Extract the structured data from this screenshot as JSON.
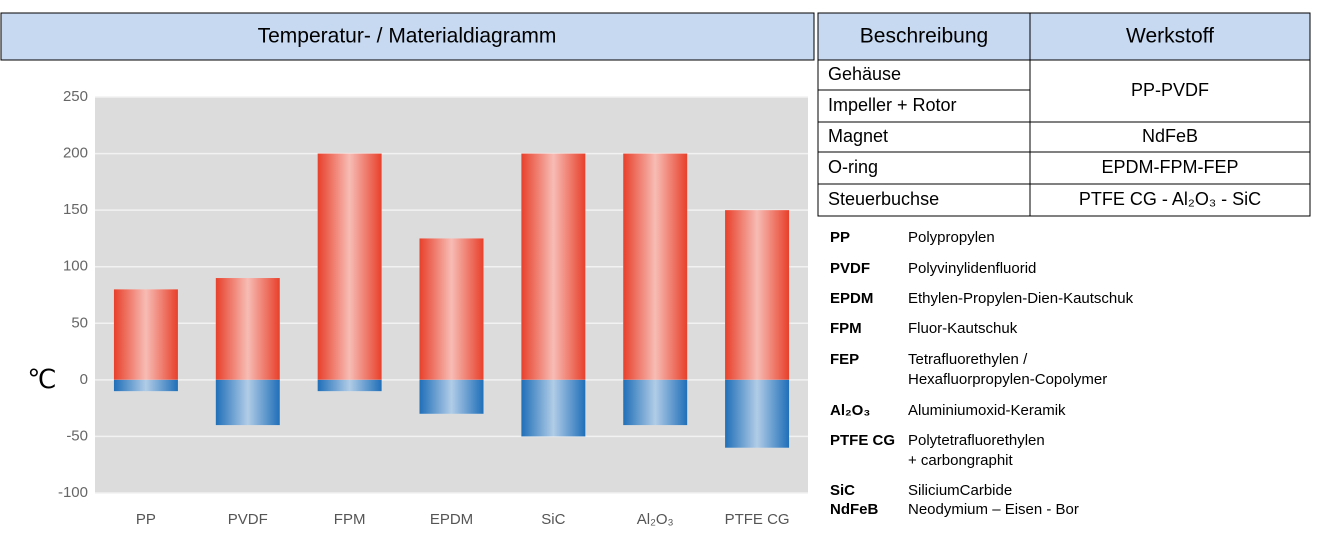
{
  "chart_data": {
    "type": "bar",
    "title": "Temperatur- / Materialdiagramm",
    "y_unit": "℃",
    "categories": [
      "PP",
      "PVDF",
      "FPM",
      "EPDM",
      "SiC",
      "Al₂O₃",
      "PTFE CG"
    ],
    "series": [
      {
        "color": "#e8402a",
        "values": [
          80,
          90,
          200,
          125,
          200,
          200,
          150
        ]
      },
      {
        "color": "#1f6fb8",
        "values": [
          -10,
          -40,
          -10,
          -30,
          -50,
          -40,
          -60
        ]
      }
    ],
    "ylim": [
      -100,
      250
    ],
    "yticks": [
      -100,
      -50,
      0,
      50,
      100,
      150,
      200,
      250
    ],
    "grid": true
  },
  "table": {
    "header": [
      "Beschreibung",
      "Werkstoff"
    ],
    "rows": [
      [
        "Gehäuse",
        "PP-PVDF"
      ],
      [
        "Impeller + Rotor"
      ],
      [
        "Magnet",
        "NdFeB"
      ],
      [
        "O-ring",
        "EPDM-FPM-FEP"
      ],
      [
        "Steuerbuchse",
        "PTFE CG - Al₂O₃ - SiC"
      ]
    ]
  },
  "abbreviations": [
    {
      "abbr": "PP",
      "lines": [
        "Polypropylen"
      ]
    },
    {
      "abbr": "PVDF",
      "lines": [
        "Polyvinylidenfluorid"
      ]
    },
    {
      "abbr": "EPDM",
      "lines": [
        "Ethylen-Propylen-Dien-Kautschuk"
      ]
    },
    {
      "abbr": "FPM",
      "lines": [
        "Fluor-Kautschuk"
      ]
    },
    {
      "abbr": "FEP",
      "lines": [
        "Tetrafluorethylen /",
        "Hexafluorpropylen-Copolymer"
      ]
    },
    {
      "abbr": "Al₂O₃",
      "lines": [
        "Aluminiumoxid-Keramik"
      ]
    },
    {
      "abbr": "PTFE CG",
      "lines": [
        "Polytetrafluorethylen",
        "+ carbongraphit"
      ]
    },
    {
      "abbr": "SiC",
      "lines": [
        "SiliciumCarbide"
      ]
    },
    {
      "abbr": "NdFeB",
      "lines": [
        "Neodymium – Eisen - Bor"
      ]
    }
  ]
}
